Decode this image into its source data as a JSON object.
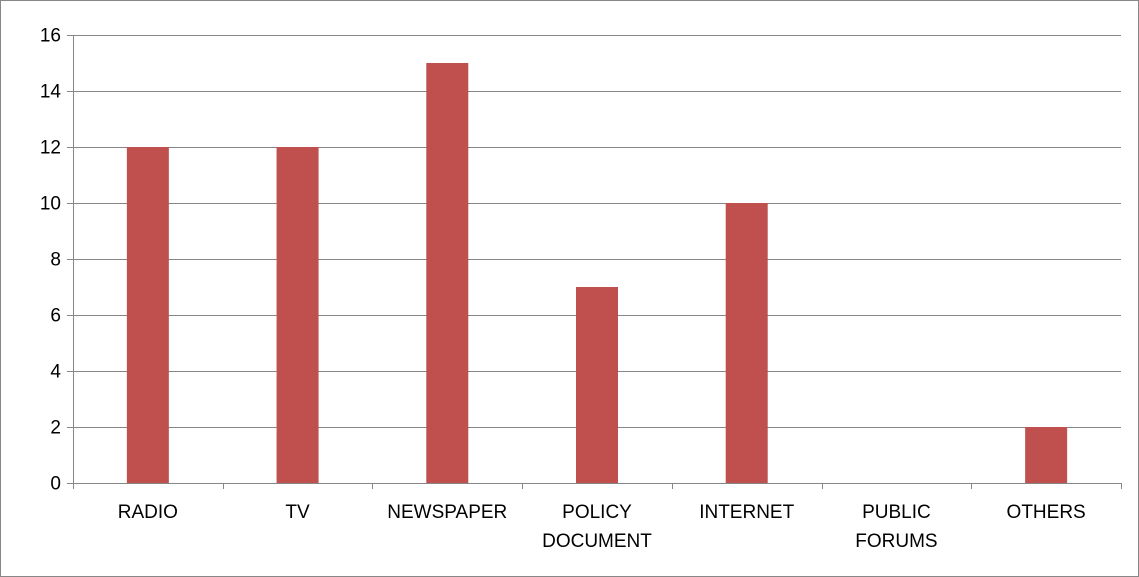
{
  "chart_data": {
    "type": "bar",
    "title": "",
    "xlabel": "",
    "ylabel": "",
    "categories": [
      [
        "RADIO"
      ],
      [
        "TV"
      ],
      [
        "NEWSPAPER"
      ],
      [
        "POLICY",
        "DOCUMENT"
      ],
      [
        "INTERNET"
      ],
      [
        "PUBLIC",
        "FORUMS"
      ],
      [
        "OTHERS"
      ]
    ],
    "values": [
      12,
      12,
      15,
      7,
      10,
      0,
      2
    ],
    "ylim": [
      0,
      16
    ],
    "yticks": [
      "0",
      "2",
      "4",
      "6",
      "8",
      "10",
      "12",
      "14",
      "16"
    ],
    "grid": true,
    "legend": "none",
    "colors": {
      "bar": "#C0504D",
      "grid": "#868686",
      "axis": "#868686",
      "text": "#000000"
    }
  }
}
